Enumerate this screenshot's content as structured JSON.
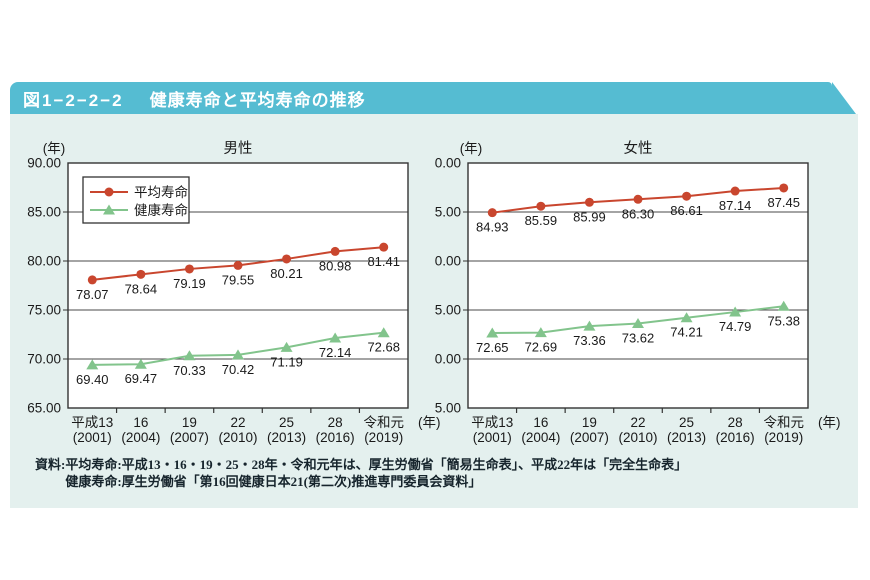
{
  "header": {
    "figure_number": "図1−2−2−2",
    "title": "健康寿命と平均寿命の推移"
  },
  "colors": {
    "header_bar": "#55bcd2",
    "panel_bg": "#e4f0ee",
    "life_expectancy_red": "#c9462e",
    "healthy_life_green": "#82c48c",
    "grid_line": "#4a4a4a",
    "plot_border": "#333333"
  },
  "chart_data": [
    {
      "type": "line",
      "title": "男性",
      "y_unit": "(年)",
      "x_unit": "(年)",
      "ylim": [
        65,
        90
      ],
      "ytick_step": 5,
      "grid": true,
      "legend_position": "upper-left",
      "categories": [
        "平成13",
        "16",
        "19",
        "22",
        "25",
        "28",
        "令和元"
      ],
      "categories_sub": [
        "(2001)",
        "(2004)",
        "(2007)",
        "(2010)",
        "(2013)",
        "(2016)",
        "(2019)"
      ],
      "series": [
        {
          "name": "平均寿命",
          "marker": "circle",
          "color": "#c9462e",
          "values": [
            78.07,
            78.64,
            79.19,
            79.55,
            80.21,
            80.98,
            81.41
          ]
        },
        {
          "name": "健康寿命",
          "marker": "triangle",
          "color": "#82c48c",
          "values": [
            69.4,
            69.47,
            70.33,
            70.42,
            71.19,
            72.14,
            72.68
          ]
        }
      ]
    },
    {
      "type": "line",
      "title": "女性",
      "y_unit": "(年)",
      "x_unit": "(年)",
      "ylim": [
        65,
        90
      ],
      "ytick_step": 5,
      "grid": true,
      "legend_position": "none",
      "categories": [
        "平成13",
        "16",
        "19",
        "22",
        "25",
        "28",
        "令和元"
      ],
      "categories_sub": [
        "(2001)",
        "(2004)",
        "(2007)",
        "(2010)",
        "(2013)",
        "(2016)",
        "(2019)"
      ],
      "series": [
        {
          "name": "平均寿命",
          "marker": "circle",
          "color": "#c9462e",
          "values": [
            84.93,
            85.59,
            85.99,
            86.3,
            86.61,
            87.14,
            87.45
          ]
        },
        {
          "name": "健康寿命",
          "marker": "triangle",
          "color": "#82c48c",
          "values": [
            72.65,
            72.69,
            73.36,
            73.62,
            74.21,
            74.79,
            75.38
          ]
        }
      ]
    }
  ],
  "source": {
    "prefix": "資料:",
    "lines": [
      "平均寿命:平成13・16・19・25・28年・令和元年は、厚生労働省「簡易生命表」、平成22年は「完全生命表」",
      "健康寿命:厚生労働省「第16回健康日本21(第二次)推進専門委員会資料」"
    ]
  }
}
